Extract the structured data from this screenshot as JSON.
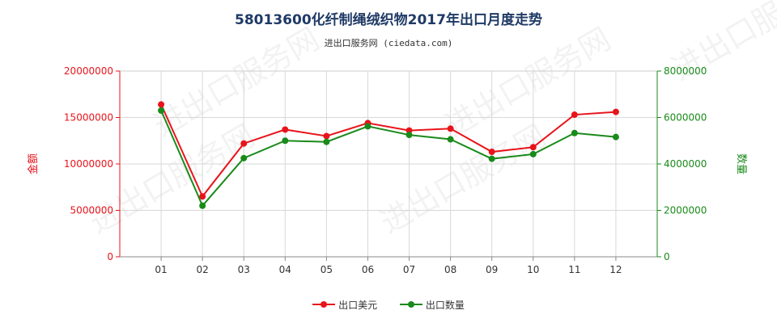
{
  "title": "58013600化纤制绳绒织物2017年出口月度走势",
  "subtitle": "进出口服务网 (ciedata.com)",
  "watermark": "进出口服务网",
  "chart_data": {
    "type": "line",
    "categories": [
      "01",
      "02",
      "03",
      "04",
      "05",
      "06",
      "07",
      "08",
      "09",
      "10",
      "11",
      "12"
    ],
    "series": [
      {
        "name": "出口美元",
        "axis": "left",
        "color": "#e8141b",
        "values": [
          16400000,
          6500000,
          12200000,
          13700000,
          13000000,
          14400000,
          13600000,
          13800000,
          11300000,
          11800000,
          15300000,
          15600000
        ]
      },
      {
        "name": "出口数量",
        "axis": "right",
        "color": "#1a8a1a",
        "values": [
          6300000,
          2200000,
          4250000,
          5000000,
          4950000,
          5620000,
          5250000,
          5060000,
          4220000,
          4420000,
          5330000,
          5160000
        ]
      }
    ],
    "y_left": {
      "label": "金额",
      "ylim": [
        0,
        20000000
      ],
      "ticks": [
        "0",
        "5000000",
        "10000000",
        "15000000",
        "20000000"
      ],
      "color": "#e8141b"
    },
    "y_right": {
      "label": "数量",
      "ylim": [
        0,
        8000000
      ],
      "ticks": [
        "0",
        "2000000",
        "4000000",
        "6000000",
        "8000000"
      ],
      "color": "#1a8a1a"
    },
    "grid": true,
    "legend_position": "bottom"
  }
}
